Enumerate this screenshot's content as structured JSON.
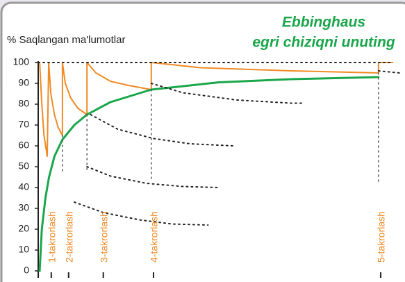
{
  "chart_data": {
    "type": "line",
    "title": [
      "Ebbinghaus",
      "egri chiziqni unuting"
    ],
    "y_label": "% Saqlangan ma'lumotlar",
    "xlim": [
      0,
      100
    ],
    "ylim": [
      0,
      100
    ],
    "yticks": [
      0,
      10,
      20,
      30,
      40,
      50,
      60,
      70,
      80,
      90,
      100
    ],
    "series": [
      {
        "color": "#f08a24",
        "dash": "none",
        "width": 2,
        "x": [
          0.4,
          1.0,
          1.6,
          2.5,
          2.9,
          3.5,
          4.5,
          5.5,
          6.7,
          6.7,
          7.5,
          9,
          11,
          13.5,
          13.5,
          16,
          20,
          25,
          31.3,
          31.3,
          45,
          70,
          94.2,
          94.2,
          98.1
        ],
        "values": [
          100,
          80,
          65,
          55,
          100,
          85,
          75,
          69,
          65,
          100,
          90,
          83,
          78,
          75,
          100,
          95,
          91,
          89,
          87,
          100,
          97.5,
          96,
          95,
          100,
          100
        ]
      },
      {
        "color": "#1aa64a",
        "dash": "none",
        "width": 3,
        "x": [
          0.4,
          1,
          2,
          3,
          4.5,
          6.7,
          10,
          13.5,
          20,
          31.3,
          50,
          70,
          94.2
        ],
        "values": [
          0,
          20,
          35,
          45,
          55,
          63,
          70,
          75,
          81,
          87,
          90.5,
          92,
          93
        ]
      },
      {
        "color": "#222222",
        "dash": "2 5",
        "width": 2,
        "x": [
          0,
          98.1
        ],
        "values": [
          100,
          100
        ]
      },
      {
        "color": "#222222",
        "dash": "2 5",
        "width": 2,
        "x": [
          94.2,
          100
        ],
        "values": [
          96,
          95
        ]
      },
      {
        "color": "#222222",
        "dash": "2 5",
        "width": 2,
        "x": [
          10,
          18,
          28,
          37,
          47
        ],
        "values": [
          33,
          28,
          24.5,
          22.5,
          22
        ]
      },
      {
        "color": "#222222",
        "dash": "2 5",
        "width": 2,
        "x": [
          13.5,
          20,
          30,
          40,
          50
        ],
        "values": [
          50,
          45.5,
          42,
          40.5,
          40
        ]
      },
      {
        "color": "#222222",
        "dash": "2 5",
        "width": 2,
        "x": [
          14.5,
          22,
          32,
          42,
          54
        ],
        "values": [
          75,
          68,
          63.5,
          61,
          60
        ]
      },
      {
        "color": "#222222",
        "dash": "2 5",
        "width": 2,
        "x": [
          31.3,
          40,
          55,
          70,
          73
        ],
        "values": [
          90,
          85.5,
          82,
          80.5,
          80.5
        ]
      },
      {
        "color": "#555555",
        "dash": "2 5",
        "width": 1.5,
        "x": [
          6.7,
          6.7
        ],
        "values": [
          65,
          48
        ]
      },
      {
        "color": "#555555",
        "dash": "2 5",
        "width": 1.5,
        "x": [
          13.5,
          13.5
        ],
        "values": [
          75,
          48
        ]
      },
      {
        "color": "#555555",
        "dash": "2 5",
        "width": 1.5,
        "x": [
          31.3,
          31.3
        ],
        "values": [
          87,
          43
        ]
      },
      {
        "color": "#555555",
        "dash": "2 5",
        "width": 1.5,
        "x": [
          94.2,
          94.2
        ],
        "values": [
          95,
          43
        ]
      }
    ],
    "annotations": [
      {
        "text": "1-takrorlash",
        "x": 4.0
      },
      {
        "text": "2-takrorlash",
        "x": 8.8
      },
      {
        "text": "3-takrorlash",
        "x": 18.4
      },
      {
        "text": "4-takrorlash",
        "x": 32.3
      },
      {
        "text": "5-takrorlash",
        "x": 95.2
      }
    ],
    "annotation_color": "#f08a24",
    "title_color": "#1aa64a"
  }
}
